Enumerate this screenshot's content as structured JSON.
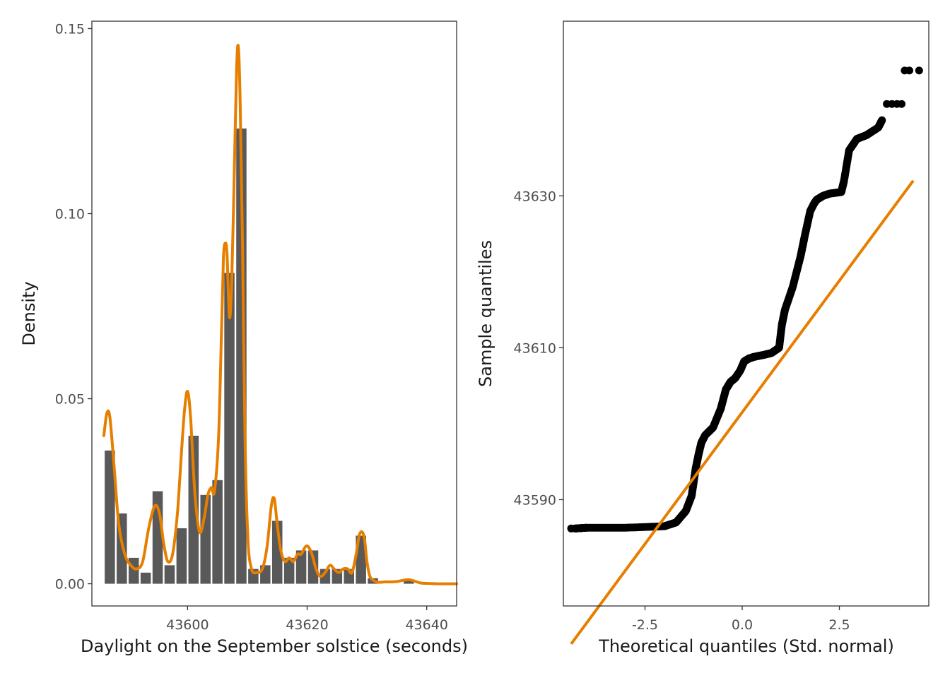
{
  "chart_data": [
    {
      "type": "bar",
      "subtype": "histogram-with-density",
      "title": "",
      "xlabel": "Daylight on the September solstice (seconds)",
      "ylabel": "Density",
      "xlim": [
        43584,
        43645
      ],
      "ylim": [
        -0.006,
        0.152
      ],
      "xticks": [
        43600,
        43620,
        43640
      ],
      "yticks": [
        0.0,
        0.05,
        0.1,
        0.15
      ],
      "ytick_labels": [
        "0.00",
        "0.05",
        "0.10",
        "0.15"
      ],
      "bin_width": 2,
      "bins": [
        {
          "start": 43586,
          "density": 0.036
        },
        {
          "start": 43588,
          "density": 0.019
        },
        {
          "start": 43590,
          "density": 0.007
        },
        {
          "start": 43592,
          "density": 0.003
        },
        {
          "start": 43594,
          "density": 0.025
        },
        {
          "start": 43596,
          "density": 0.005
        },
        {
          "start": 43598,
          "density": 0.015
        },
        {
          "start": 43600,
          "density": 0.04
        },
        {
          "start": 43602,
          "density": 0.024
        },
        {
          "start": 43604,
          "density": 0.028
        },
        {
          "start": 43606,
          "density": 0.084
        },
        {
          "start": 43608,
          "density": 0.123
        },
        {
          "start": 43610,
          "density": 0.004
        },
        {
          "start": 43612,
          "density": 0.005
        },
        {
          "start": 43614,
          "density": 0.017
        },
        {
          "start": 43616,
          "density": 0.007
        },
        {
          "start": 43618,
          "density": 0.009
        },
        {
          "start": 43620,
          "density": 0.009
        },
        {
          "start": 43622,
          "density": 0.004
        },
        {
          "start": 43624,
          "density": 0.004
        },
        {
          "start": 43626,
          "density": 0.004
        },
        {
          "start": 43628,
          "density": 0.013
        },
        {
          "start": 43630,
          "density": 0.0015
        },
        {
          "start": 43632,
          "density": 0.0
        },
        {
          "start": 43634,
          "density": 0.0
        },
        {
          "start": 43636,
          "density": 0.001
        },
        {
          "start": 43638,
          "density": 0.0
        },
        {
          "start": 43640,
          "density": 0.0
        },
        {
          "start": 43642,
          "density": 0.0
        }
      ],
      "density_curve": {
        "color": "#E67E00",
        "x": [
          43586,
          43586.5,
          43587,
          43587.7,
          43588.5,
          43589.5,
          43590.5,
          43591.5,
          43592.5,
          43593.5,
          43594.5,
          43595.3,
          43596,
          43596.7,
          43597.5,
          43598.3,
          43599,
          43599.5,
          43600,
          43600.5,
          43601.2,
          43602,
          43602.8,
          43603.4,
          43604,
          43604.5,
          43605.2,
          43605.7,
          43606,
          43606.3,
          43606.6,
          43607,
          43607.4,
          43607.8,
          43608.2,
          43608.5,
          43608.8,
          43609.2,
          43609.6,
          43610.1,
          43610.7,
          43611.5,
          43612.5,
          43613.3,
          43614,
          43614.5,
          43615,
          43615.6,
          43616.3,
          43617,
          43617.7,
          43618.4,
          43619,
          43619.7,
          43620.2,
          43620.8,
          43621.5,
          43622.2,
          43623,
          43623.8,
          43624.5,
          43625.3,
          43626,
          43626.8,
          43627.5,
          43628.2,
          43628.7,
          43629.2,
          43629.6,
          43630,
          43630.5,
          43631.2,
          43632,
          43633,
          43634,
          43635,
          43636,
          43637,
          43638,
          43639,
          43640,
          43642,
          43645
        ],
        "y": [
          0.04,
          0.046,
          0.045,
          0.032,
          0.016,
          0.008,
          0.005,
          0.004,
          0.006,
          0.015,
          0.021,
          0.019,
          0.011,
          0.006,
          0.008,
          0.019,
          0.036,
          0.047,
          0.052,
          0.045,
          0.025,
          0.014,
          0.018,
          0.024,
          0.026,
          0.025,
          0.04,
          0.07,
          0.088,
          0.092,
          0.089,
          0.072,
          0.082,
          0.11,
          0.139,
          0.145,
          0.13,
          0.09,
          0.04,
          0.012,
          0.004,
          0.003,
          0.004,
          0.01,
          0.021,
          0.023,
          0.016,
          0.009,
          0.006,
          0.007,
          0.006,
          0.008,
          0.008,
          0.01,
          0.01,
          0.008,
          0.004,
          0.002,
          0.003,
          0.005,
          0.004,
          0.003,
          0.004,
          0.004,
          0.003,
          0.008,
          0.013,
          0.014,
          0.012,
          0.006,
          0.002,
          0.0008,
          0.0004,
          0.0005,
          0.0005,
          0.0006,
          0.0009,
          0.0011,
          0.0007,
          0.0002,
          0.0001,
          0.0,
          0.0
        ]
      }
    },
    {
      "type": "scatter",
      "subtype": "qq-plot",
      "title": "",
      "xlabel": "Theoretical quantiles (Std. normal)",
      "ylabel": "Sample quantiles",
      "xlim": [
        -4.6,
        4.8
      ],
      "ylim": [
        43576,
        43653
      ],
      "xticks": [
        -2.5,
        0.0,
        2.5
      ],
      "xtick_labels": [
        "-2.5",
        "0.0",
        "2.5"
      ],
      "yticks": [
        43590,
        43610,
        43630
      ],
      "point_color": "#000000",
      "qq_curve": {
        "x": [
          -4.3,
          -4.0,
          -3.0,
          -2.0,
          -1.7,
          -1.45,
          -1.3,
          -1.2,
          -1.12,
          -1.05,
          -0.95,
          -0.75,
          -0.55,
          -0.42,
          -0.3,
          -0.18,
          -0.05,
          0.05,
          0.18,
          0.3,
          0.5,
          0.75,
          0.95,
          1.02,
          1.1,
          1.3,
          1.5,
          1.6,
          1.75,
          1.85,
          1.92,
          2.08,
          2.25,
          2.55,
          2.62,
          2.75,
          2.95,
          3.2,
          3.5,
          3.6
        ],
        "y": [
          43586.2,
          43586.3,
          43586.3,
          43586.5,
          43587,
          43588.5,
          43590.5,
          43594,
          43596,
          43597.5,
          43598.5,
          43599.5,
          43602,
          43604.5,
          43605.5,
          43606,
          43607,
          43608.2,
          43608.6,
          43608.8,
          43609,
          43609.3,
          43610,
          43613,
          43615,
          43618,
          43622,
          43624.5,
          43628,
          43629,
          43629.5,
          43630,
          43630.3,
          43630.5,
          43632,
          43636,
          43637.5,
          43638,
          43639,
          43640
        ]
      },
      "points_extra": [
        {
          "x": -4.4,
          "y": 43586.2
        },
        {
          "x": 3.72,
          "y": 43642.1
        },
        {
          "x": 3.85,
          "y": 43642.1
        },
        {
          "x": 3.98,
          "y": 43642.1
        },
        {
          "x": 4.1,
          "y": 43642.1
        },
        {
          "x": 4.18,
          "y": 43646.5
        },
        {
          "x": 4.3,
          "y": 43646.5
        },
        {
          "x": 4.55,
          "y": 43646.5
        }
      ],
      "reference_line": {
        "color": "#E67E00",
        "x": [
          -4.4,
          4.4
        ],
        "y": [
          43571,
          43632
        ]
      }
    }
  ]
}
